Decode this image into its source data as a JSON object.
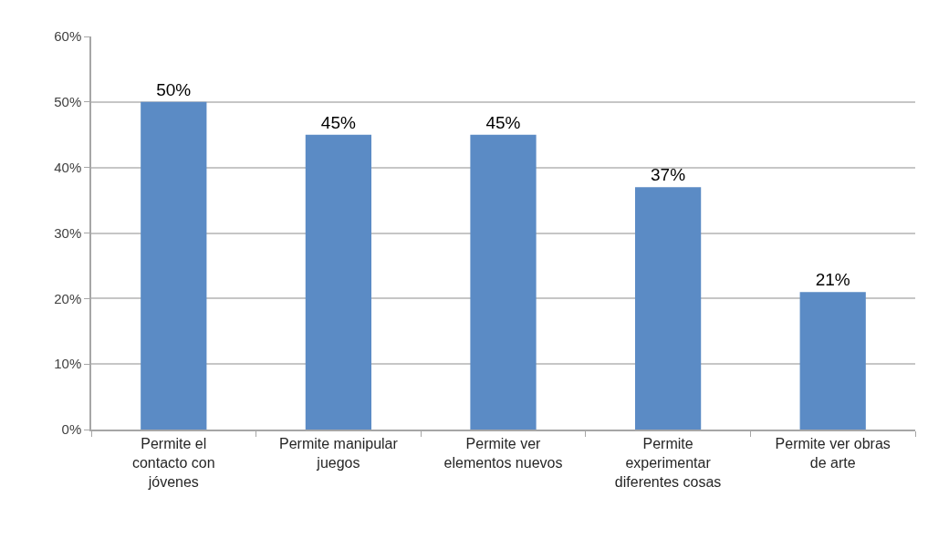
{
  "chart_data": {
    "type": "bar",
    "categories": [
      "Permite el contacto con jóvenes",
      "Permite manipular juegos",
      "Permite ver elementos nuevos",
      "Permite experimentar diferentes cosas",
      "Permite ver obras de arte"
    ],
    "values": [
      50,
      45,
      45,
      37,
      21
    ],
    "value_labels": [
      "50%",
      "45%",
      "45%",
      "37%",
      "21%"
    ],
    "color": "#5b8bc5",
    "ylim": [
      0,
      60
    ],
    "yticks": [
      {
        "value": 0,
        "label": "0%"
      },
      {
        "value": 10,
        "label": "10%"
      },
      {
        "value": 20,
        "label": "20%"
      },
      {
        "value": 30,
        "label": "30%"
      },
      {
        "value": 40,
        "label": "40%"
      },
      {
        "value": 50,
        "label": "50%"
      },
      {
        "value": 60,
        "label": "60%"
      }
    ],
    "grid": "y",
    "legend": false
  }
}
